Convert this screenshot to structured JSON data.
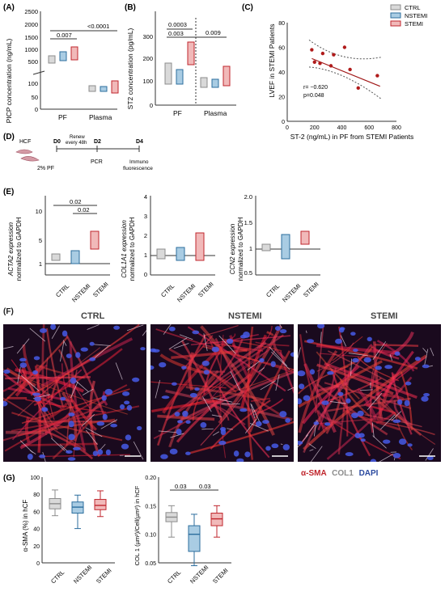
{
  "colors": {
    "ctrl": "#8c8c8c",
    "nstemi": "#2c6e9e",
    "stemi": "#c0262d",
    "ctrl_fill": "#d9d9d9",
    "nstemi_fill": "#a9cce3",
    "stemi_fill": "#f1b9b9",
    "dot": "#b01b1b"
  },
  "legend": {
    "items": [
      {
        "label": "CTRL",
        "key": "ctrl"
      },
      {
        "label": "NSTEMI",
        "key": "nstemi"
      },
      {
        "label": "STEMI",
        "key": "stemi"
      }
    ]
  },
  "panelA": {
    "letter": "(A)",
    "ylabel": "PICP concentration (ng/mL)",
    "ticks": [
      "2500",
      "2000",
      "1500",
      "1000",
      "500",
      "100",
      "50",
      "0"
    ],
    "groups": [
      "PF",
      "Plasma"
    ],
    "sig": [
      "0.007",
      "<0.0001"
    ]
  },
  "panelB": {
    "letter": "(B)",
    "ylabel": "ST2 concentration (pg/mL)",
    "ticks": [
      "300",
      "200",
      "100",
      "0"
    ],
    "groups": [
      "PF",
      "Plasma"
    ],
    "sig": [
      "0.0003",
      "0.003",
      "0.009"
    ]
  },
  "panelC": {
    "letter": "(C)",
    "ylabel": "LVEF in STEMI Patients",
    "xlabel": "ST-2 (ng/mL) in PF from STEMI Patients",
    "stats": [
      "r= −0.620",
      "p=0.048"
    ]
  },
  "panelD": {
    "letter": "(D)",
    "cells": "HCF",
    "days": [
      "D0",
      "D2",
      "D4"
    ],
    "renew": [
      "Renew",
      "every 48h"
    ],
    "pf": "2% PF",
    "pcr": "PCR",
    "immuno": [
      "Immuno",
      "fluorescence"
    ]
  },
  "panelE": {
    "letter": "(E)",
    "plots": [
      {
        "ylabel_gene": "ACTA2",
        "ylabel_rest": "expression",
        "ylabel2": "normalized to GAPDH",
        "ticks": [
          "10",
          "5",
          "1"
        ],
        "sig": [
          "0.02",
          "0.02"
        ]
      },
      {
        "ylabel_gene": "COL1A1",
        "ylabel_rest": "expression",
        "ylabel2": "normalized to GAPDH",
        "ticks": [
          "4",
          "3",
          "2",
          "1",
          "0"
        ],
        "sig": []
      },
      {
        "ylabel_gene": "CCN2",
        "ylabel_rest": "expression",
        "ylabel2": "normalized to GAPDH",
        "ticks": [
          "2.0",
          "1.5",
          "1",
          "0.5"
        ],
        "sig": []
      }
    ],
    "xcats": [
      "CTRL",
      "NSTEMI",
      "STEMI"
    ]
  },
  "panelF": {
    "letter": "(F)",
    "titles": [
      "CTRL",
      "NSTEMI",
      "STEMI"
    ],
    "legend": [
      "α-SMA",
      "COL1",
      "DAPI"
    ]
  },
  "panelG": {
    "letter": "(G)",
    "plots": [
      {
        "ylabel": "α-SMA (%) in hCF",
        "ticks": [
          "100",
          "80",
          "60",
          "40",
          "20",
          "0"
        ],
        "sig": []
      },
      {
        "ylabel": "COL 1 (µm²)/Cell(µm²) in hCF",
        "ticks": [
          "0.20",
          "0.15",
          "0.10",
          "0.05"
        ],
        "sig": [
          "0.03",
          "0.03"
        ]
      }
    ],
    "xcats": [
      "CTRL",
      "NSTEMI",
      "STEMI"
    ]
  },
  "chart_data": [
    {
      "type": "box",
      "panel": "C-scatter",
      "title": "",
      "x": [
        180,
        200,
        240,
        260,
        320,
        340,
        420,
        460,
        520,
        660
      ],
      "y": [
        58,
        48,
        47,
        55,
        45,
        54,
        60,
        42,
        27,
        37
      ],
      "xlim": [
        0,
        800
      ],
      "ylim": [
        0,
        80
      ],
      "xlabel": "ST-2 (ng/mL) in PF from STEMI Patients",
      "ylabel": "LVEF in STEMI Patients"
    },
    {
      "type": "box",
      "panel": "G-left",
      "categories": [
        "CTRL",
        "NSTEMI",
        "STEMI"
      ],
      "ylim": [
        0,
        100
      ],
      "series": [
        {
          "min": 55,
          "q1": 63,
          "median": 69,
          "q3": 75,
          "max": 85
        },
        {
          "min": 40,
          "q1": 58,
          "median": 65,
          "q3": 71,
          "max": 79
        },
        {
          "min": 54,
          "q1": 62,
          "median": 67,
          "q3": 74,
          "max": 84
        }
      ]
    },
    {
      "type": "box",
      "panel": "G-right",
      "categories": [
        "CTRL",
        "NSTEMI",
        "STEMI"
      ],
      "ylim": [
        0.05,
        0.2
      ],
      "series": [
        {
          "min": 0.095,
          "q1": 0.122,
          "median": 0.13,
          "q3": 0.138,
          "max": 0.15
        },
        {
          "min": 0.045,
          "q1": 0.07,
          "median": 0.1,
          "q3": 0.115,
          "max": 0.135
        },
        {
          "min": 0.095,
          "q1": 0.115,
          "median": 0.127,
          "q3": 0.137,
          "max": 0.15
        }
      ]
    }
  ]
}
